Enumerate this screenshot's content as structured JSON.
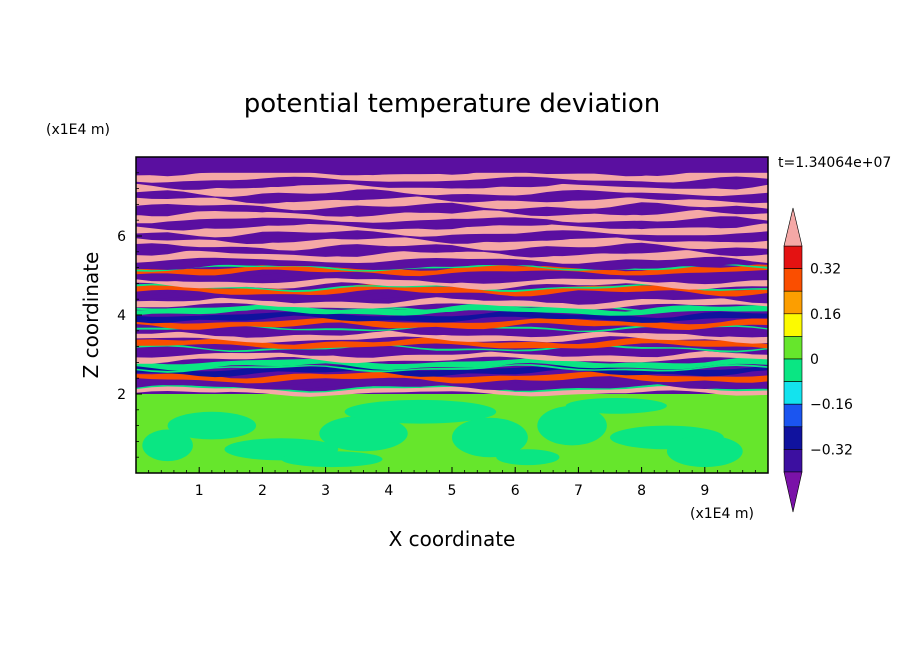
{
  "chart_data": {
    "type": "heatmap",
    "title": "potential temperature deviation",
    "xlabel": "X coordinate",
    "ylabel": "Z coordinate",
    "x_unit": "(x1E4 m)",
    "y_unit": "(x1E4 m)",
    "time_label": "t=1.34064e+07",
    "xlim": [
      0,
      10
    ],
    "ylim": [
      0,
      8
    ],
    "x_ticks": [
      1,
      2,
      3,
      4,
      5,
      6,
      7,
      8,
      9
    ],
    "y_ticks": [
      2,
      4,
      6
    ],
    "colorbar": {
      "levels": [
        -0.4,
        -0.32,
        -0.24,
        -0.16,
        -0.08,
        0,
        0.08,
        0.16,
        0.24,
        0.32,
        0.4
      ],
      "tick_labels": [
        "0.32",
        "0.16",
        "0",
        "−0.16",
        "−0.32"
      ],
      "tick_values": [
        0.32,
        0.16,
        0,
        -0.16,
        -0.32
      ],
      "colors": [
        "#7a12a8",
        "#3c0fa0",
        "#10129e",
        "#1b55f0",
        "#13e3ee",
        "#0ae683",
        "#66e62c",
        "#fcfa00",
        "#fc9e00",
        "#fa4e00",
        "#e41212",
        "#f5a8a6"
      ],
      "extend": "both"
    },
    "colors": {
      "very_negative": "#5a0fa0",
      "negative": "#10129e",
      "zero_neg": "#0ae683",
      "zero_pos": "#66e62c",
      "positive": "#fa4e00",
      "very_positive": "#f5a8a6"
    }
  }
}
